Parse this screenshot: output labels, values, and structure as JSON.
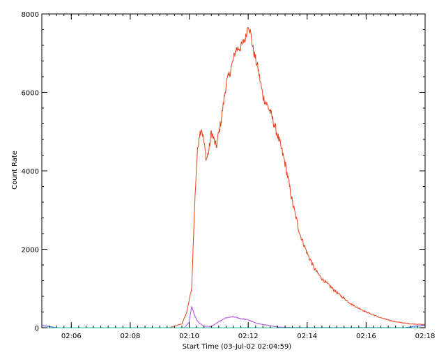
{
  "chart_data": {
    "type": "line",
    "xlabel": "Start Time (03-Jul-02 02:04:59)",
    "ylabel": "Count Rate",
    "x_unit": "minutes",
    "xlim": [
      "02:05",
      "02:18"
    ],
    "ylim": [
      0,
      8000
    ],
    "x_ticks": [
      "02:06",
      "02:08",
      "02:10",
      "02:12",
      "02:14",
      "02:16",
      "02:18"
    ],
    "y_ticks": [
      "0",
      "2000",
      "4000",
      "6000",
      "8000"
    ],
    "y_tick_values": [
      0,
      2000,
      4000,
      6000,
      8000
    ],
    "grid": false,
    "series": [
      {
        "color": "#e8401c",
        "x": [
          "02:05",
          "02:09:20",
          "02:09:45",
          "02:09:55",
          "02:10:05",
          "02:10:10",
          "02:10:15",
          "02:10:20",
          "02:10:25",
          "02:10:30",
          "02:10:35",
          "02:10:40",
          "02:10:45",
          "02:10:55",
          "02:11:05",
          "02:11:15",
          "02:11:25",
          "02:11:35",
          "02:11:45",
          "02:11:55",
          "02:12:00",
          "02:12:05",
          "02:12:10",
          "02:12:20",
          "02:12:30",
          "02:12:45",
          "02:13:00",
          "02:13:15",
          "02:13:30",
          "02:13:45",
          "02:14:00",
          "02:14:15",
          "02:14:30",
          "02:15:00",
          "02:15:30",
          "02:16:00",
          "02:16:30",
          "02:17:00",
          "02:17:30",
          "02:18:00"
        ],
        "y": [
          0,
          0,
          100,
          400,
          1000,
          2800,
          4200,
          4900,
          5100,
          4700,
          4300,
          4500,
          5000,
          4600,
          5300,
          6200,
          6600,
          7100,
          7150,
          7400,
          7750,
          7500,
          7100,
          6600,
          5900,
          5500,
          4900,
          4200,
          3200,
          2400,
          1900,
          1500,
          1250,
          900,
          600,
          400,
          250,
          150,
          100,
          80
        ]
      },
      {
        "color": "#b24be6",
        "x": [
          "02:05",
          "02:09:50",
          "02:10:00",
          "02:10:05",
          "02:10:10",
          "02:10:15",
          "02:10:20",
          "02:10:30",
          "02:10:45",
          "02:11:00",
          "02:11:15",
          "02:11:30",
          "02:11:45",
          "02:12:00",
          "02:12:15",
          "02:12:30",
          "02:12:45",
          "02:13:00",
          "02:13:30",
          "02:18:00"
        ],
        "y": [
          0,
          0,
          150,
          550,
          350,
          200,
          120,
          40,
          30,
          150,
          250,
          280,
          230,
          200,
          120,
          80,
          50,
          20,
          5,
          0
        ]
      },
      {
        "color": "#2f4fe0",
        "x": [
          "02:05",
          "02:05:10",
          "02:05:30",
          "02:17:20",
          "02:17:40",
          "02:18:00"
        ],
        "y": [
          60,
          40,
          0,
          0,
          40,
          60
        ]
      },
      {
        "color": "#20c0a0",
        "x": [
          "02:05",
          "02:18:00"
        ],
        "y": [
          0,
          0
        ]
      }
    ]
  }
}
